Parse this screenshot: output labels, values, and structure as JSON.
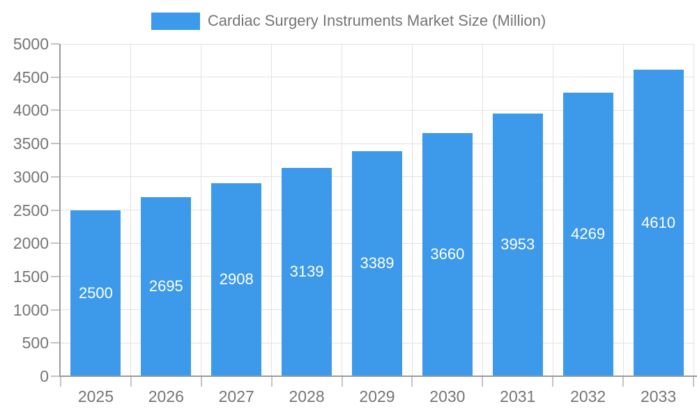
{
  "chart_data": {
    "type": "bar",
    "title": "Cardiac Surgery Instruments Market Size (Million)",
    "legend": {
      "position": "top-center",
      "entries": [
        "Cardiac Surgery Instruments Market Size (Million)"
      ]
    },
    "categories": [
      "2025",
      "2026",
      "2027",
      "2028",
      "2029",
      "2030",
      "2031",
      "2032",
      "2033"
    ],
    "series": [
      {
        "name": "Cardiac Surgery Instruments Market Size (Million)",
        "values": [
          2500,
          2695,
          2908,
          3139,
          3389,
          3660,
          3953,
          4269,
          4610
        ]
      }
    ],
    "xlabel": "",
    "ylabel": "",
    "ylim": [
      0,
      5000
    ],
    "ytick_step": 500,
    "ytick_labels": [
      "0",
      "500",
      "1000",
      "1500",
      "2000",
      "2500",
      "3000",
      "3500",
      "4000",
      "4500",
      "5000"
    ],
    "grid": true,
    "gridlines": "horizontal and vertical, light gray, ticks outside axes",
    "value_labels": {
      "position": "inside-center",
      "color": "#ffffff",
      "values": [
        "2500",
        "2695",
        "2908",
        "3139",
        "3389",
        "3660",
        "3953",
        "4269",
        "4610"
      ]
    },
    "colors": {
      "bar": "#3d9aea",
      "grid": "#e2e2e2",
      "axis": "#9a9a9a",
      "tick": "#c4c4c4",
      "label": "#757575",
      "value_label": "#ffffff",
      "background": "#ffffff"
    }
  }
}
